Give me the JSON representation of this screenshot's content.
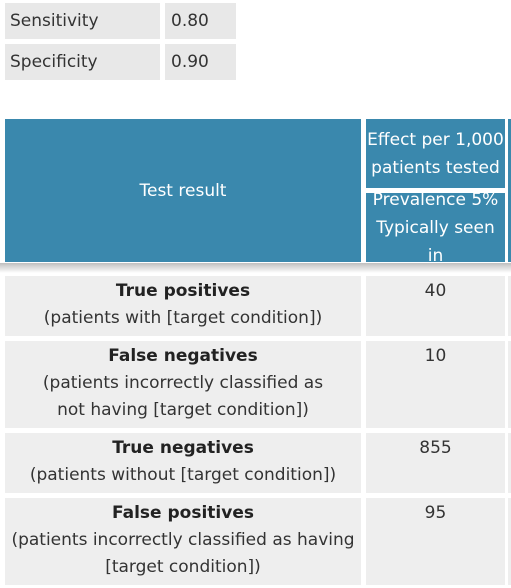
{
  "parameters": [
    {
      "label": "Sensitivity",
      "value": "0.80"
    },
    {
      "label": "Specificity",
      "value": "0.90"
    }
  ],
  "table": {
    "header": {
      "test_result": "Test result",
      "effect_line1": "Effect per 1,000",
      "effect_line2": "patients tested",
      "prevalence_line1": "Prevalence 5%",
      "prevalence_line2": "Typically seen in"
    },
    "rows": [
      {
        "title": "True positives",
        "desc_line1": "(patients with [target condition])",
        "desc_line2": "",
        "value": "40"
      },
      {
        "title": "False negatives",
        "desc_line1": "(patients incorrectly classified as",
        "desc_line2": "not having [target condition])",
        "value": "10"
      },
      {
        "title": "True negatives",
        "desc_line1": "(patients without [target condition])",
        "desc_line2": "",
        "value": "855"
      },
      {
        "title": "False positives",
        "desc_line1": "(patients incorrectly classified as having",
        "desc_line2": "[target condition])",
        "value": "95"
      }
    ]
  },
  "colors": {
    "header_bg": "#3a88ad",
    "header_text": "#ffffff",
    "cell_bg": "#eeeeee",
    "param_bg": "#e8e8e8"
  }
}
